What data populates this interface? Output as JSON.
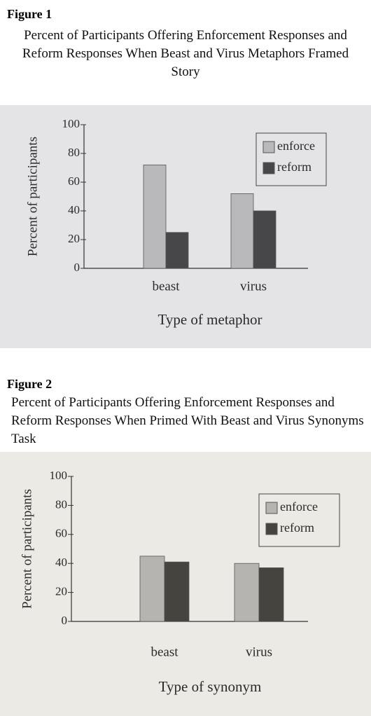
{
  "chart_data": [
    {
      "figure": "Figure 1",
      "type": "bar",
      "title": "Percent of Participants Offering Enforcement Responses and Reform Responses When Beast and Virus Metaphors Framed Story",
      "categories": [
        "beast",
        "virus"
      ],
      "series": [
        {
          "name": "enforce",
          "color": "#b9b9bb",
          "values": [
            72,
            52
          ]
        },
        {
          "name": "reform",
          "color": "#47474a",
          "values": [
            25,
            40
          ]
        }
      ],
      "ylim": [
        0,
        100
      ],
      "yticks": [
        0,
        20,
        40,
        60,
        80,
        100
      ],
      "ylabel": "Percent of participants",
      "xlabel": "Type of metaphor",
      "legend": "upper right"
    },
    {
      "figure": "Figure 2",
      "type": "bar",
      "title": "Percent of Participants Offering Enforcement Responses and Reform Responses When Primed With Beast and Virus Synonyms Task",
      "categories": [
        "beast",
        "virus"
      ],
      "series": [
        {
          "name": "enforce",
          "color": "#b5b4b0",
          "values": [
            45,
            40
          ]
        },
        {
          "name": "reform",
          "color": "#46443f",
          "values": [
            41,
            37
          ]
        }
      ],
      "ylim": [
        0,
        100
      ],
      "yticks": [
        0,
        20,
        40,
        60,
        80,
        100
      ],
      "ylabel": "Percent of participants",
      "xlabel": "Type of synonym",
      "legend": "upper right"
    }
  ]
}
